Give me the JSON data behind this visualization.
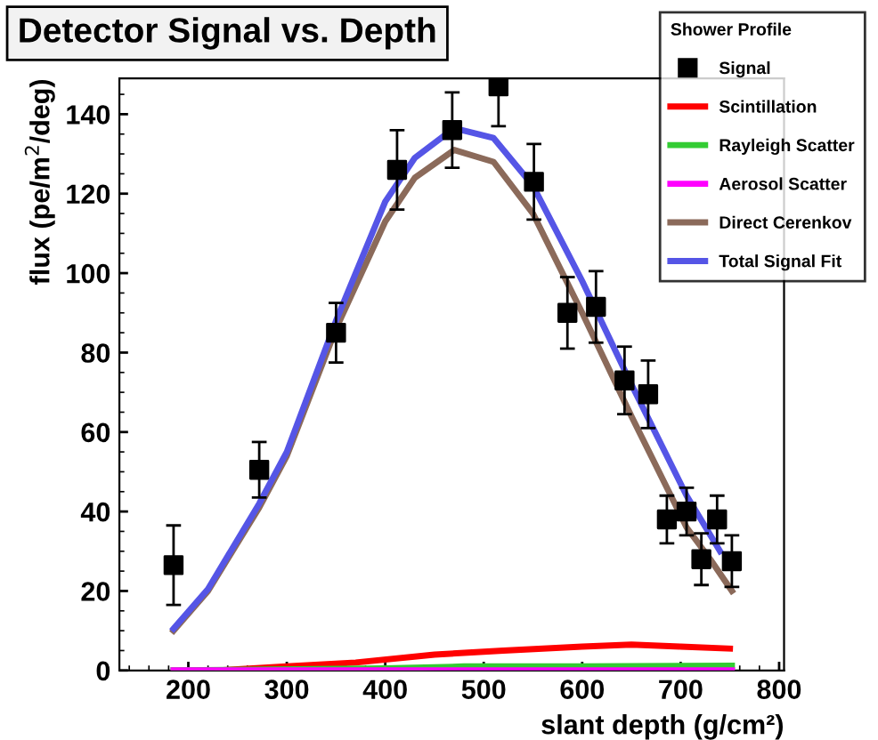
{
  "chart_data": {
    "type": "scatter",
    "title": "Detector Signal vs. Depth",
    "xlabel": "slant depth (g/cm²)",
    "ylabel": "flux (pe/m$^{2}$/deg)",
    "legend_title": "Shower Profile",
    "xlim": [
      130,
      805
    ],
    "ylim": [
      0,
      149
    ],
    "xticks": [
      200,
      300,
      400,
      500,
      600,
      700,
      800
    ],
    "yticks": [
      0,
      20,
      40,
      60,
      80,
      100,
      120,
      140
    ],
    "legend": "top right",
    "grid": false,
    "series": [
      {
        "name": "Signal",
        "marker": "square",
        "color": "#000000",
        "x": [
          185,
          272,
          350,
          412,
          468,
          515,
          551,
          585,
          614,
          643,
          667,
          686,
          706,
          721,
          737,
          752
        ],
        "values": [
          26.5,
          50.5,
          85,
          126,
          136,
          147,
          123,
          90,
          91.5,
          73,
          69.5,
          38,
          40,
          28,
          38,
          27.5
        ],
        "errors": [
          10,
          7,
          7.5,
          10,
          9.5,
          10,
          9.5,
          9,
          9,
          8.5,
          8.5,
          6,
          6,
          6.5,
          6,
          6.5
        ]
      },
      {
        "name": "Scintillation",
        "type": "line",
        "color": "#ff0000",
        "x": [
          230,
          300,
          370,
          450,
          520,
          600,
          650,
          700,
          750
        ],
        "values": [
          0,
          1,
          2,
          4,
          5,
          6,
          6.5,
          6,
          5.5
        ]
      },
      {
        "name": "Rayleigh Scatter",
        "type": "line",
        "color": "#33cc33",
        "x": [
          185,
          400,
          480,
          600,
          752
        ],
        "values": [
          0,
          0.5,
          1,
          1,
          1.2
        ]
      },
      {
        "name": "Aerosol Scatter",
        "type": "line",
        "color": "#ff00ff",
        "x": [
          185,
          752
        ],
        "values": [
          0,
          0
        ]
      },
      {
        "name": "Direct Cerenkov",
        "type": "line",
        "color": "#8b6a5a",
        "x": [
          185,
          220,
          272,
          300,
          350,
          400,
          430,
          470,
          510,
          550,
          600,
          650,
          706,
          730,
          752
        ],
        "values": [
          10,
          20,
          41,
          54,
          86,
          113,
          124,
          131,
          128,
          115,
          90,
          64,
          36,
          28,
          20
        ]
      },
      {
        "name": "Total Signal Fit",
        "type": "line",
        "color": "#5555e6",
        "x": [
          185,
          220,
          272,
          300,
          350,
          400,
          430,
          470,
          510,
          550,
          600,
          650,
          706,
          740
        ],
        "values": [
          10.5,
          20.5,
          42,
          55,
          88,
          118,
          129,
          136.5,
          134,
          122,
          98,
          72,
          44,
          30
        ]
      }
    ]
  }
}
